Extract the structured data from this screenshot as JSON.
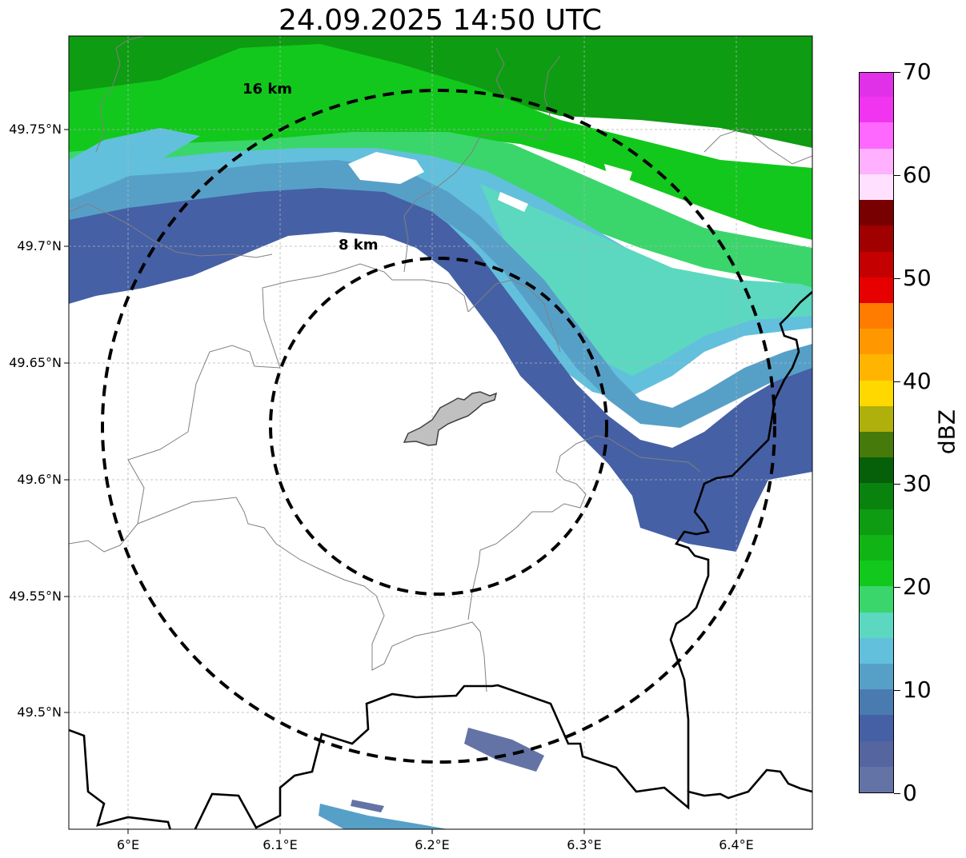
{
  "title": "24.09.2025 14:50 UTC",
  "map": {
    "type": "weather-radar-reflectivity",
    "lat_range": [
      49.45,
      49.79
    ],
    "lon_range": [
      5.96,
      6.45
    ],
    "gridlines": true,
    "radar_center": {
      "lat": 49.623,
      "lon": 6.203
    },
    "range_rings": [
      {
        "label": "8 km",
        "radius_km": 8
      },
      {
        "label": "16 km",
        "radius_km": 16
      }
    ],
    "lat_ticks": [
      {
        "value": 49.75,
        "label": "49.75°N"
      },
      {
        "value": 49.7,
        "label": "49.7°N"
      },
      {
        "value": 49.65,
        "label": "49.65°N"
      },
      {
        "value": 49.6,
        "label": "49.6°N"
      },
      {
        "value": 49.55,
        "label": "49.55°N"
      },
      {
        "value": 49.5,
        "label": "49.5°N"
      }
    ],
    "lon_ticks": [
      {
        "value": 6.0,
        "label": "6°E"
      },
      {
        "value": 6.1,
        "label": "6.1°E"
      },
      {
        "value": 6.2,
        "label": "6.2°E"
      },
      {
        "value": 6.3,
        "label": "6.3°E"
      },
      {
        "value": 6.4,
        "label": "6.4°E"
      }
    ],
    "precipitation_band": "band of 0–25 dBZ echoes across the north and east; strongest (green, 20–25 dBZ) in the north-east"
  },
  "colorbar": {
    "unit": "dBZ",
    "min": 0,
    "max": 70,
    "step": 2.5,
    "tick_labels": [
      "0",
      "10",
      "20",
      "30",
      "40",
      "50",
      "60",
      "70"
    ],
    "colors": [
      "#6373a5",
      "#5565a0",
      "#4560a5",
      "#4a7bb0",
      "#56a0c8",
      "#62c0dc",
      "#5cd8c0",
      "#3ad66b",
      "#12c81c",
      "#10b414",
      "#0e9c12",
      "#0a820e",
      "#06600a",
      "#467a0a",
      "#b0b00c",
      "#ffd800",
      "#ffb400",
      "#ff9800",
      "#ff7c00",
      "#e60000",
      "#c40000",
      "#a00000",
      "#780000",
      "#ffe0ff",
      "#ffb0ff",
      "#ff68ff",
      "#f034f0",
      "#e030e8"
    ]
  }
}
